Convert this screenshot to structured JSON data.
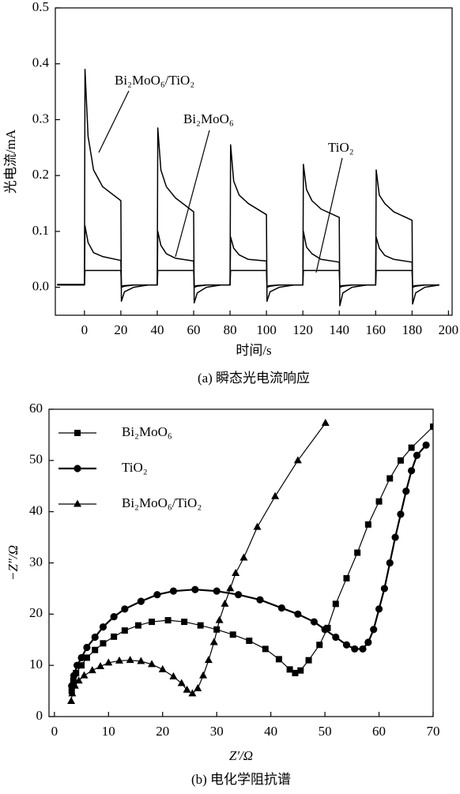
{
  "chart_data": [
    {
      "type": "line",
      "caption": "(a) 瞬态光电流响应",
      "x_label": "时间/s",
      "y_label": "光电流/mA",
      "xlim": [
        -16,
        202
      ],
      "ylim": [
        -0.05,
        0.5
      ],
      "xticks": [
        0,
        20,
        40,
        60,
        80,
        100,
        120,
        140,
        160,
        180,
        200
      ],
      "yticks": [
        {
          "value": 0,
          "label": "0.0"
        },
        0.1,
        0.2,
        0.3,
        0.4,
        0.5
      ],
      "legend": false,
      "series": [
        {
          "name": "Bi₂MoO₆/TiO₂",
          "color": "#000000",
          "x": [
            -15,
            0,
            0.3,
            2,
            5,
            10,
            20,
            20.3,
            22,
            27,
            35,
            40,
            40.3,
            42,
            45,
            50,
            60,
            60.3,
            62,
            67,
            75,
            80,
            80.3,
            82,
            85,
            90,
            100,
            100.3,
            102,
            107,
            115,
            120,
            120.3,
            122,
            125,
            130,
            140,
            140.3,
            142,
            147,
            155,
            160,
            160.3,
            162,
            165,
            170,
            180,
            180.3,
            182,
            187,
            195
          ],
          "values": [
            0.005,
            0.005,
            0.39,
            0.27,
            0.21,
            0.18,
            0.155,
            -0.025,
            -0.008,
            0,
            0.004,
            0.004,
            0.285,
            0.21,
            0.18,
            0.16,
            0.135,
            -0.028,
            -0.01,
            0,
            0.004,
            0.004,
            0.255,
            0.19,
            0.165,
            0.15,
            0.13,
            -0.025,
            -0.008,
            0,
            0.004,
            0.004,
            0.22,
            0.175,
            0.155,
            0.14,
            0.125,
            -0.033,
            -0.01,
            0,
            0.004,
            0.004,
            0.21,
            0.165,
            0.15,
            0.135,
            0.12,
            -0.03,
            -0.01,
            0,
            0.004
          ]
        },
        {
          "name": "Bi₂MoO₆",
          "color": "#000000",
          "x": [
            -15,
            0,
            0.3,
            2,
            5,
            10,
            20,
            20.3,
            22,
            27,
            35,
            40,
            40.3,
            42,
            45,
            50,
            60,
            60.3,
            62,
            67,
            75,
            80,
            80.3,
            82,
            85,
            90,
            100,
            100.3,
            102,
            107,
            115,
            120,
            120.3,
            122,
            125,
            130,
            140,
            140.3,
            142,
            147,
            155,
            160,
            160.3,
            162,
            165,
            170,
            180,
            180.3,
            182,
            187,
            195
          ],
          "values": [
            0.005,
            0.005,
            0.11,
            0.08,
            0.062,
            0.055,
            0.048,
            0,
            0.002,
            0.004,
            0.004,
            0.004,
            0.1,
            0.075,
            0.06,
            0.052,
            0.047,
            0,
            0.002,
            0.004,
            0.004,
            0.004,
            0.09,
            0.07,
            0.058,
            0.05,
            0.047,
            0,
            0.002,
            0.004,
            0.004,
            0.004,
            0.1,
            0.072,
            0.06,
            0.05,
            0.045,
            0,
            0.002,
            0.004,
            0.004,
            0.004,
            0.09,
            0.07,
            0.057,
            0.05,
            0.045,
            0,
            0.002,
            0.004,
            0.004
          ]
        },
        {
          "name": "TiO₂",
          "color": "#000000",
          "x": [
            -15,
            0,
            0.3,
            2,
            5,
            10,
            20,
            20.3,
            22,
            27,
            35,
            40,
            40.3,
            42,
            45,
            50,
            60,
            60.3,
            62,
            67,
            75,
            80,
            80.3,
            82,
            85,
            90,
            100,
            100.3,
            102,
            107,
            115,
            120,
            120.3,
            122,
            125,
            130,
            140,
            140.3,
            142,
            147,
            155,
            160,
            160.3,
            162,
            165,
            170,
            180,
            180.3,
            182,
            187,
            195
          ],
          "values": [
            0.004,
            0.004,
            0.03,
            0.03,
            0.03,
            0.03,
            0.03,
            0.002,
            0.003,
            0.004,
            0.004,
            0.004,
            0.03,
            0.03,
            0.03,
            0.03,
            0.03,
            0.002,
            0.003,
            0.004,
            0.004,
            0.004,
            0.03,
            0.03,
            0.03,
            0.03,
            0.03,
            0.002,
            0.003,
            0.004,
            0.004,
            0.004,
            0.03,
            0.03,
            0.03,
            0.03,
            0.03,
            0.002,
            0.003,
            0.004,
            0.004,
            0.004,
            0.03,
            0.03,
            0.03,
            0.03,
            0.03,
            0.002,
            0.003,
            0.004,
            0.004
          ]
        }
      ]
    },
    {
      "type": "line",
      "caption": "(b) 电化学阻抗谱",
      "x_label": "Z′/Ω",
      "y_label": "−Z″/Ω",
      "xlim": [
        -1,
        70
      ],
      "ylim": [
        0,
        60
      ],
      "xticks": [
        0,
        10,
        20,
        30,
        40,
        50,
        60,
        70
      ],
      "yticks": [
        0,
        10,
        20,
        30,
        40,
        50,
        60
      ],
      "legend": "upper left",
      "series": [
        {
          "name": "Bi₂MoO₆",
          "color": "#000000",
          "marker": "square",
          "x": [
            3.2,
            3.5,
            4,
            5,
            6,
            7.5,
            9,
            11,
            13,
            15.5,
            18,
            21,
            24,
            27,
            30,
            33,
            36,
            39,
            41.5,
            43.5,
            44.5,
            45.5,
            47,
            49,
            50.5,
            52,
            54,
            56,
            58,
            60,
            62,
            64,
            66,
            70
          ],
          "values": [
            5,
            7,
            8.5,
            10,
            11.5,
            13,
            14.3,
            15.6,
            16.8,
            17.8,
            18.5,
            18.8,
            18.5,
            17.8,
            17,
            16,
            14.8,
            13.2,
            11.2,
            9.2,
            8.5,
            9,
            11,
            14,
            17.3,
            22,
            27,
            32,
            37.5,
            42,
            46.5,
            50,
            52.5,
            56.6
          ]
        },
        {
          "name": "TiO₂",
          "color": "#000000",
          "marker": "circle",
          "x": [
            3.2,
            3.6,
            4.2,
            5,
            6,
            7.5,
            9,
            11,
            13,
            16,
            19,
            22,
            26,
            30,
            34,
            38,
            42,
            45,
            48,
            50,
            52,
            54,
            55.5,
            57,
            58,
            59,
            60,
            61,
            62,
            63,
            64,
            65,
            66,
            67,
            68.7
          ],
          "values": [
            6,
            8,
            10,
            11.5,
            13.5,
            15.5,
            17.5,
            19.5,
            21,
            22.5,
            23.8,
            24.5,
            24.8,
            24.5,
            23.8,
            22.8,
            21.2,
            20,
            18.5,
            17,
            15.5,
            14,
            13.2,
            13.2,
            14.5,
            17,
            21,
            25,
            30,
            35,
            39.5,
            44,
            48,
            51,
            53
          ]
        },
        {
          "name": "Bi₂MoO₆/TiO₂",
          "color": "#000000",
          "marker": "triangle",
          "x": [
            3.1,
            3.3,
            3.8,
            4.5,
            5.5,
            7,
            8.5,
            10,
            12,
            14,
            16,
            18,
            20,
            22,
            23.5,
            24.5,
            25.5,
            26.5,
            27.5,
            28.5,
            29.5,
            30.5,
            31.5,
            32.5,
            33.5,
            35,
            37.5,
            40.8,
            45,
            50.1
          ],
          "values": [
            3,
            4.5,
            6,
            7,
            8,
            9,
            9.8,
            10.5,
            10.9,
            11,
            10.8,
            10.2,
            9.2,
            7.8,
            6.5,
            5.2,
            4.5,
            5.5,
            8,
            11,
            14.5,
            18.8,
            22,
            25,
            28,
            31,
            37,
            43,
            50,
            57.3
          ]
        }
      ]
    }
  ]
}
